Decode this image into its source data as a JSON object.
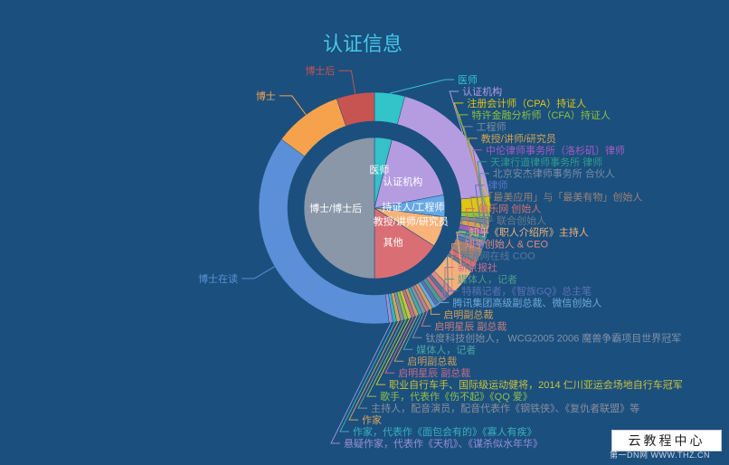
{
  "chart_data": {
    "type": "pie",
    "title": "认证信息",
    "inner": {
      "slices": [
        {
          "label": "医师",
          "value": 4,
          "color": "#36c0c8"
        },
        {
          "label": "认证机构",
          "value": 18,
          "color": "#b59ce0"
        },
        {
          "label": "持证人/工程师",
          "value": 5,
          "color": "#67a7e3"
        },
        {
          "label": "教授/讲师/研究员",
          "value": 7,
          "color": "#f8b37a"
        },
        {
          "label": "其他",
          "value": 16,
          "color": "#d96f74"
        },
        {
          "label": "博士/博士后",
          "value": 50,
          "color": "#8a97a8"
        }
      ]
    },
    "outer": {
      "slices": [
        {
          "label": "医师",
          "value": 4,
          "color": "#31c5c9"
        },
        {
          "label": "认证机构",
          "value": 18,
          "color": "#b59ce0"
        },
        {
          "label": "注册会计师（CPA）持证人",
          "value": 2.2,
          "color": "#e0c511"
        },
        {
          "label": "特许金融分析师（CFA）持证人",
          "value": 0.8,
          "color": "#8fc13a"
        },
        {
          "label": "工程师",
          "value": 0.6,
          "color": "#7f8c98"
        },
        {
          "label": "教授/讲师/研究员",
          "value": 0.8,
          "color": "#d2a352"
        },
        {
          "label": "中伦律师事务所（洛杉矶）律师",
          "value": 0.8,
          "color": "#a65cbf"
        },
        {
          "label": "天津行道律师事务所 律师",
          "value": 0.6,
          "color": "#2f9c8b"
        },
        {
          "label": "北京安杰律师事务所 合伙人",
          "value": 0.6,
          "color": "#7a8da3"
        },
        {
          "label": "律师",
          "value": 0.5,
          "color": "#5477c4"
        },
        {
          "label": "「最美应用」与「最美有物」创始人",
          "value": 2.0,
          "color": "#9c8376"
        },
        {
          "label": "触乐网 创始人",
          "value": 0.8,
          "color": "#d86f6f"
        },
        {
          "label": "知乎 联合创始人",
          "value": 0.5,
          "color": "#6f7a87"
        },
        {
          "label": "知乎《职人介绍所》主持人",
          "value": 3.5,
          "color": "#f0b27a"
        },
        {
          "label": "知乎创始人 & CEO",
          "value": 0.8,
          "color": "#e08a85"
        },
        {
          "label": "新浪网在线 COO",
          "value": 0.5,
          "color": "#59779c"
        },
        {
          "label": "新京报社",
          "value": 0.6,
          "color": "#c86d89"
        },
        {
          "label": "媒体人，记者",
          "value": 0.6,
          "color": "#4e9a8c"
        },
        {
          "label": "特稿记者，《智族GQ》总主笔",
          "value": 0.5,
          "color": "#5c72b6"
        },
        {
          "label": "腾讯集团高级副总裁、微信创始人",
          "value": 0.5,
          "color": "#6fa8da"
        },
        {
          "label": "启明副总裁",
          "value": 0.5,
          "color": "#d4a05a"
        },
        {
          "label": "启明星辰 副总裁",
          "value": 0.5,
          "color": "#c97d7d"
        },
        {
          "label": "钛度科技创始人， WCG2005 2006 魔兽争霸项目世界冠军",
          "value": 0.5,
          "color": "#8391a3"
        },
        {
          "label": "媒体人，记者",
          "value": 0.5,
          "color": "#4aa7a0"
        },
        {
          "label": "启明副总裁",
          "value": 0.5,
          "color": "#c99d63"
        },
        {
          "label": "启明星辰 副总裁",
          "value": 0.5,
          "color": "#c96a8a"
        },
        {
          "label": "职业自行车手、国际级运动健将，2014 仁川亚运会场地自行车冠军",
          "value": 0.5,
          "color": "#c9c33a"
        },
        {
          "label": "歌手，代表作《伤不起》《QQ 爱》",
          "value": 0.5,
          "color": "#8fbf4a"
        },
        {
          "label": "主持人，配音演员，配音代表作《钢铁侠》、《复仇者联盟》等",
          "value": 0.5,
          "color": "#8a8e99"
        },
        {
          "label": "作家",
          "value": 0.5,
          "color": "#d6a35a"
        },
        {
          "label": "作家，代表作《面包会有的》《寡人有疾》",
          "value": 0.5,
          "color": "#3ab0b8"
        },
        {
          "label": "悬疑作家，代表作《天机》、《谋杀似水年华》",
          "value": 0.5,
          "color": "#9a8ed8"
        },
        {
          "label": "博士在读",
          "value": 35,
          "color": "#5b8fd8"
        },
        {
          "label": "博士",
          "value": 9,
          "color": "#f6a24d"
        },
        {
          "label": "博士后",
          "value": 5,
          "color": "#c75451"
        }
      ]
    }
  },
  "watermark": "云教程中心",
  "footer_note": "第一DN网    WWW.THZ.CN"
}
